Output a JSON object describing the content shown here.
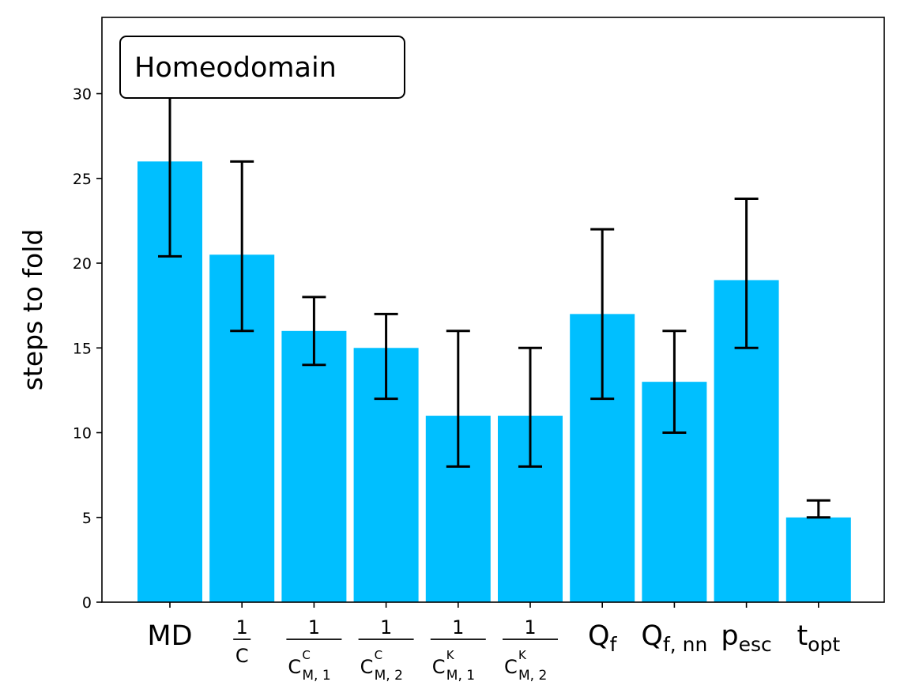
{
  "chart_data": {
    "type": "bar",
    "annotation": "Homeodomain",
    "xlabel": "",
    "ylabel": "steps to fold",
    "ylim": [
      0,
      34.5
    ],
    "yticks": [
      0,
      5,
      10,
      15,
      20,
      25,
      30
    ],
    "yticks_labels": [
      "0",
      "5",
      "10",
      "15",
      "20",
      "25",
      "30"
    ],
    "bar_color": "#00bfff",
    "grid": false,
    "categories": [
      "MD",
      "1/C",
      "1/C^C_M,1",
      "1/C^C_M,2",
      "1/C^K_M,1",
      "1/C^K_M,2",
      "Q_f",
      "Q_f,nn",
      "p_esc",
      "t_opt"
    ],
    "category_labels": [
      {
        "kind": "text",
        "main": "MD"
      },
      {
        "kind": "frac",
        "num": "1",
        "den": "C"
      },
      {
        "kind": "frac",
        "num": "1",
        "den": "C",
        "sup": "C",
        "sub": "M, 1"
      },
      {
        "kind": "frac",
        "num": "1",
        "den": "C",
        "sup": "C",
        "sub": "M, 2"
      },
      {
        "kind": "frac",
        "num": "1",
        "den": "C",
        "sup": "K",
        "sub": "M, 1"
      },
      {
        "kind": "frac",
        "num": "1",
        "den": "C",
        "sup": "K",
        "sub": "M, 2"
      },
      {
        "kind": "sub",
        "main": "Q",
        "sub": "f"
      },
      {
        "kind": "sub",
        "main": "Q",
        "sub": "f, nn"
      },
      {
        "kind": "sub",
        "main": "p",
        "sub": "esc"
      },
      {
        "kind": "sub",
        "main": "t",
        "sub": "opt"
      }
    ],
    "values": [
      26,
      20.5,
      16,
      15,
      11,
      11,
      17,
      13,
      19,
      5
    ],
    "error_low": [
      20.4,
      16,
      14,
      12,
      8,
      8,
      12,
      10,
      15,
      5
    ],
    "error_high": [
      32.5,
      26,
      18,
      17,
      16,
      15,
      22,
      16,
      23.8,
      6
    ]
  }
}
